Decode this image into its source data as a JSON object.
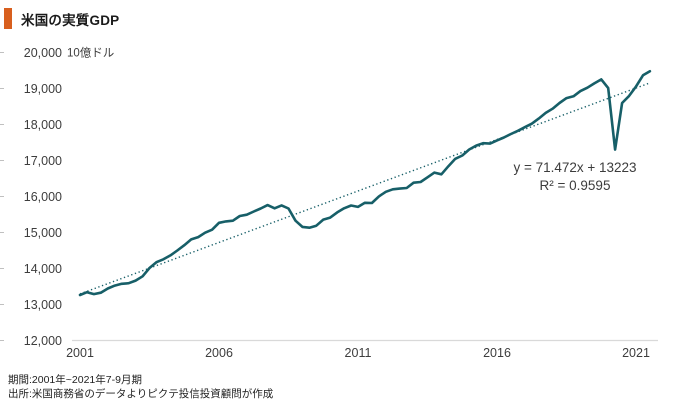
{
  "header": {
    "title": "米国の実質GDP"
  },
  "footer": {
    "period": "期間:2001年~2021年7-9月期",
    "source": "出所:米国商務省のデータよりピクテ投信投資顧問が作成"
  },
  "colors": {
    "accent": "#d85f1e",
    "line": "#175f68",
    "trend": "#175f68",
    "axis_line": "#d9d9d9",
    "tick_mark": "#c0c0c0",
    "tick_text": "#3d3d3d",
    "annotation_text": "#3c3c3c"
  },
  "chart_data": {
    "type": "line",
    "title": "米国の実質GDP",
    "unit_label": "10億ドル",
    "xlabel": "",
    "ylabel": "10億ドル",
    "frequency": "quarterly",
    "x_start": "2001Q1",
    "x_end": "2021Q3",
    "ylim": [
      12000,
      20000
    ],
    "ytick_step": 1000,
    "xtick_years": [
      2001,
      2006,
      2011,
      2016,
      2021
    ],
    "grid": false,
    "legend_position": "none",
    "series": [
      {
        "name": "米国の実質GDP",
        "values": [
          13263,
          13343,
          13290,
          13327,
          13444,
          13525,
          13574,
          13591,
          13663,
          13784,
          14014,
          14176,
          14256,
          14365,
          14500,
          14648,
          14807,
          14873,
          14994,
          15077,
          15270,
          15308,
          15327,
          15459,
          15494,
          15583,
          15667,
          15762,
          15671,
          15752,
          15667,
          15328,
          15155,
          15134,
          15189,
          15357,
          15415,
          15557,
          15672,
          15750,
          15712,
          15825,
          15820,
          16004,
          16130,
          16199,
          16219,
          16236,
          16382,
          16403,
          16532,
          16664,
          16616,
          16842,
          17048,
          17139,
          17306,
          17414,
          17480,
          17469,
          17557,
          17639,
          17735,
          17824,
          17925,
          18021,
          18164,
          18322,
          18438,
          18598,
          18732,
          18783,
          18927,
          19022,
          19141,
          19254,
          19011,
          17303,
          18597,
          18794,
          19055,
          19368,
          19479
        ]
      }
    ],
    "trendline": {
      "slope": 71.472,
      "intercept": 13223,
      "equation_label": "y = 71.472x + 13223",
      "r2_label": "R² = 0.9595"
    }
  }
}
